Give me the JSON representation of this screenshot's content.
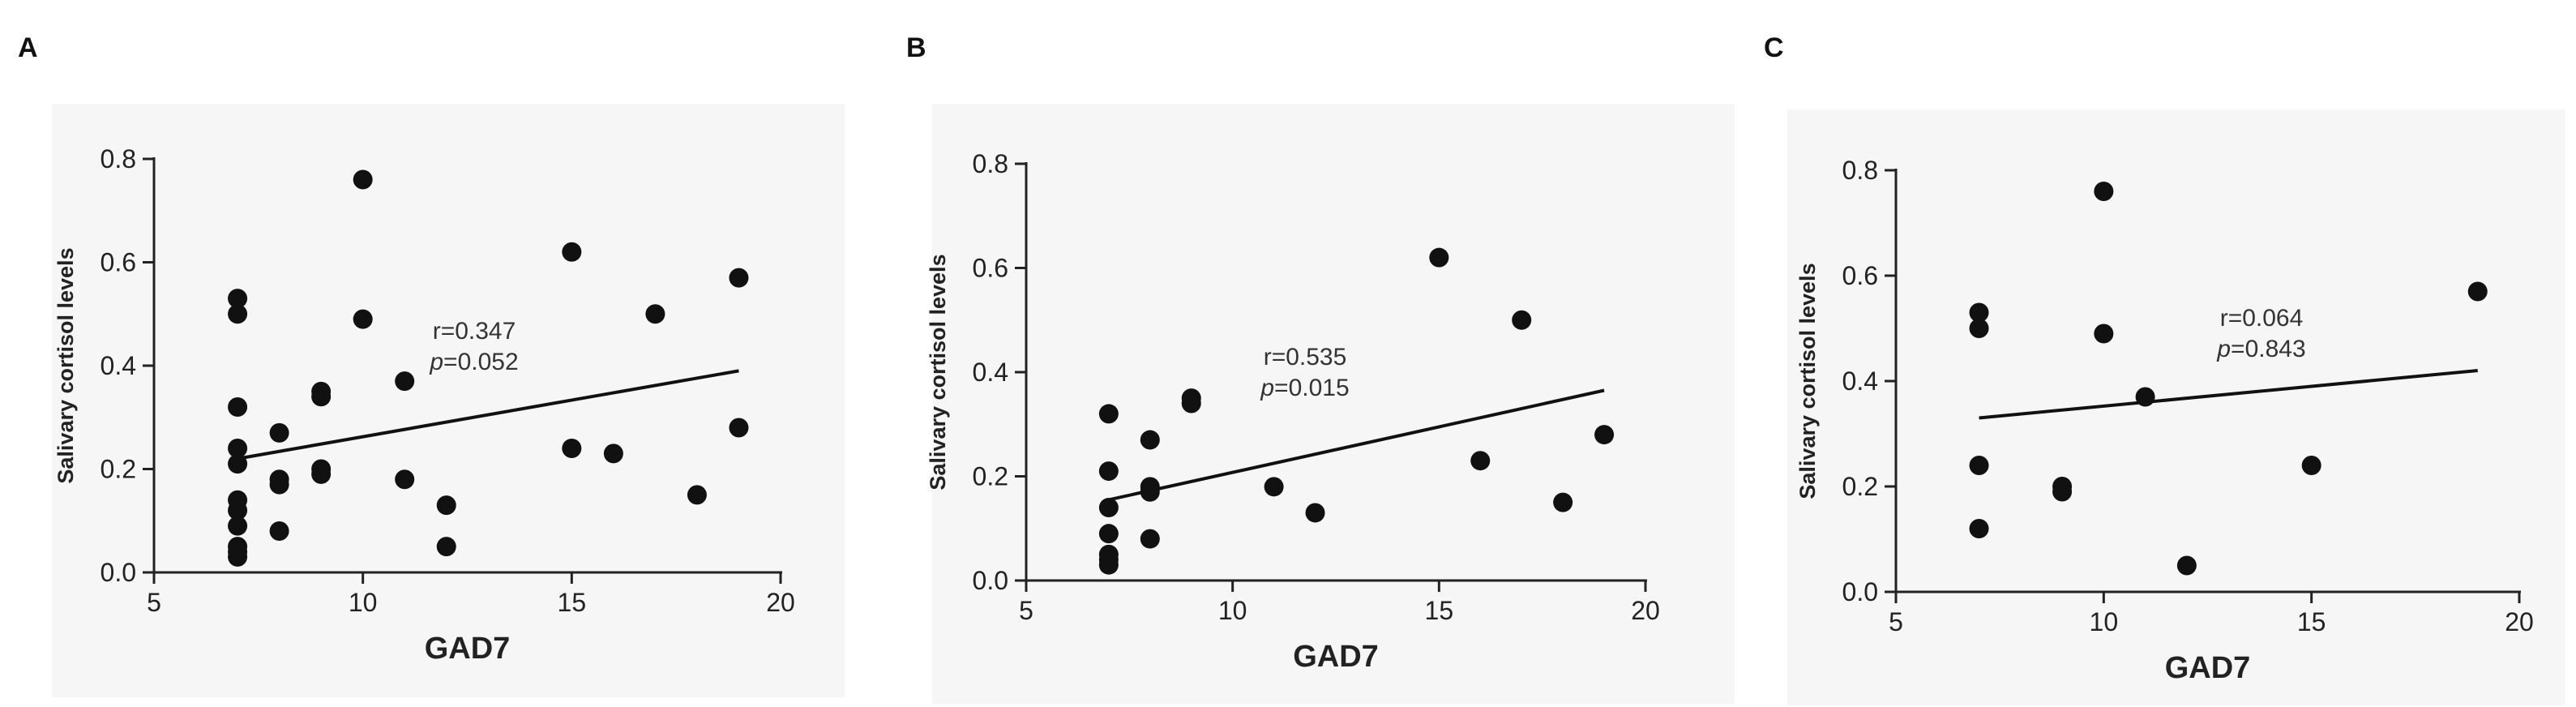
{
  "chart_data": [
    {
      "panel": "A",
      "type": "scatter",
      "xlabel": "GAD7",
      "ylabel": "Salivary cortisol levels",
      "xlim": [
        5,
        20
      ],
      "ylim": [
        0.0,
        0.8
      ],
      "xticks": [
        "5",
        "10",
        "15",
        "20"
      ],
      "yticks": [
        "0.0",
        "0.2",
        "0.4",
        "0.6",
        "0.8"
      ],
      "points": [
        [
          7,
          0.53
        ],
        [
          7,
          0.5
        ],
        [
          7,
          0.32
        ],
        [
          7,
          0.24
        ],
        [
          7,
          0.21
        ],
        [
          7,
          0.14
        ],
        [
          7,
          0.12
        ],
        [
          7,
          0.09
        ],
        [
          7,
          0.05
        ],
        [
          7,
          0.04
        ],
        [
          7,
          0.03
        ],
        [
          8,
          0.27
        ],
        [
          8,
          0.18
        ],
        [
          8,
          0.17
        ],
        [
          8,
          0.08
        ],
        [
          9,
          0.35
        ],
        [
          9,
          0.34
        ],
        [
          9,
          0.2
        ],
        [
          9,
          0.19
        ],
        [
          10,
          0.76
        ],
        [
          10,
          0.49
        ],
        [
          11,
          0.37
        ],
        [
          11,
          0.18
        ],
        [
          12,
          0.13
        ],
        [
          12,
          0.05
        ],
        [
          15,
          0.62
        ],
        [
          15,
          0.24
        ],
        [
          16,
          0.23
        ],
        [
          17,
          0.5
        ],
        [
          18,
          0.15
        ],
        [
          19,
          0.57
        ],
        [
          19,
          0.28
        ]
      ],
      "fit_line": [
        [
          7,
          0.22
        ],
        [
          19,
          0.39
        ]
      ],
      "annotation": {
        "r": "r=0.347",
        "p_symbol": "p",
        "p_value": "=0.052"
      }
    },
    {
      "panel": "B",
      "type": "scatter",
      "xlabel": "GAD7",
      "ylabel": "Salivary cortisol levels",
      "xlim": [
        5,
        20
      ],
      "ylim": [
        0.0,
        0.8
      ],
      "xticks": [
        "5",
        "10",
        "15",
        "20"
      ],
      "yticks": [
        "0.0",
        "0.2",
        "0.4",
        "0.6",
        "0.8"
      ],
      "points": [
        [
          7,
          0.32
        ],
        [
          7,
          0.21
        ],
        [
          7,
          0.14
        ],
        [
          7,
          0.09
        ],
        [
          7,
          0.05
        ],
        [
          7,
          0.04
        ],
        [
          7,
          0.03
        ],
        [
          8,
          0.27
        ],
        [
          8,
          0.18
        ],
        [
          8,
          0.17
        ],
        [
          8,
          0.08
        ],
        [
          9,
          0.35
        ],
        [
          9,
          0.34
        ],
        [
          11,
          0.18
        ],
        [
          12,
          0.13
        ],
        [
          15,
          0.62
        ],
        [
          16,
          0.23
        ],
        [
          17,
          0.5
        ],
        [
          18,
          0.15
        ],
        [
          19,
          0.28
        ]
      ],
      "fit_line": [
        [
          7,
          0.155
        ],
        [
          19,
          0.365
        ]
      ],
      "annotation": {
        "r": "r=0.535",
        "p_symbol": "p",
        "p_value": "=0.015"
      }
    },
    {
      "panel": "C",
      "type": "scatter",
      "xlabel": "GAD7",
      "ylabel": "Salivary cortisol levels",
      "xlim": [
        5,
        20
      ],
      "ylim": [
        0.0,
        0.8
      ],
      "xticks": [
        "5",
        "10",
        "15",
        "20"
      ],
      "yticks": [
        "0.0",
        "0.2",
        "0.4",
        "0.6",
        "0.8"
      ],
      "points": [
        [
          7,
          0.53
        ],
        [
          7,
          0.5
        ],
        [
          7,
          0.24
        ],
        [
          7,
          0.12
        ],
        [
          9,
          0.2
        ],
        [
          9,
          0.19
        ],
        [
          10,
          0.76
        ],
        [
          10,
          0.49
        ],
        [
          11,
          0.37
        ],
        [
          12,
          0.05
        ],
        [
          15,
          0.24
        ],
        [
          19,
          0.57
        ]
      ],
      "fit_line": [
        [
          7,
          0.33
        ],
        [
          19,
          0.42
        ]
      ],
      "annotation": {
        "r": "r=0.064",
        "p_symbol": "p",
        "p_value": "=0.843"
      }
    }
  ]
}
